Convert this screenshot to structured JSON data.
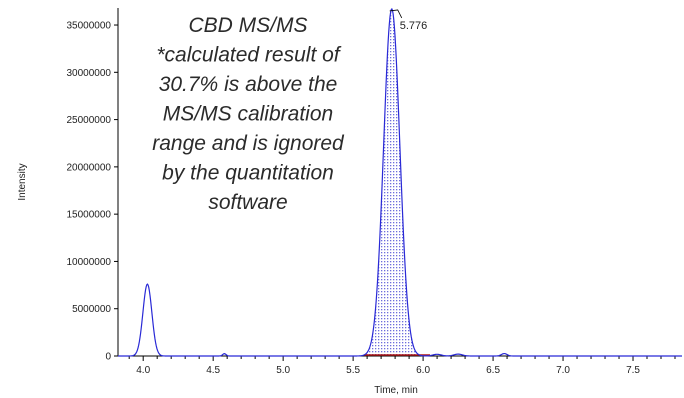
{
  "chart_data": {
    "type": "line",
    "title": "",
    "xlabel": "Time, min",
    "ylabel": "Intensity",
    "xlim": [
      3.82,
      7.85
    ],
    "ylim": [
      0,
      36800000
    ],
    "grid": false,
    "x_ticks": [
      "4.0",
      "4.5",
      "5.0",
      "5.5",
      "6.0",
      "6.5",
      "7.0",
      "7.5"
    ],
    "y_ticks": [
      "0",
      "5000000",
      "10000000",
      "15000000",
      "20000000",
      "25000000",
      "30000000",
      "35000000"
    ],
    "peaks": [
      {
        "rt": 4.03,
        "height": 7600000,
        "width_sigma": 0.032
      },
      {
        "rt": 5.776,
        "height": 36700000,
        "width_sigma": 0.058,
        "label": "5.776",
        "integrated": true
      }
    ],
    "integration_range": [
      5.58,
      6.05
    ],
    "annotation": [
      "CBD MS/MS",
      "*calculated result of",
      "30.7% is above the",
      "MS/MS calibration",
      "range and is ignored",
      "by the quantitation",
      "software"
    ],
    "colors": {
      "trace": "#2929d6",
      "fill": "#8f8fe6",
      "baseline": "#b01818",
      "axis": "#000000"
    }
  }
}
